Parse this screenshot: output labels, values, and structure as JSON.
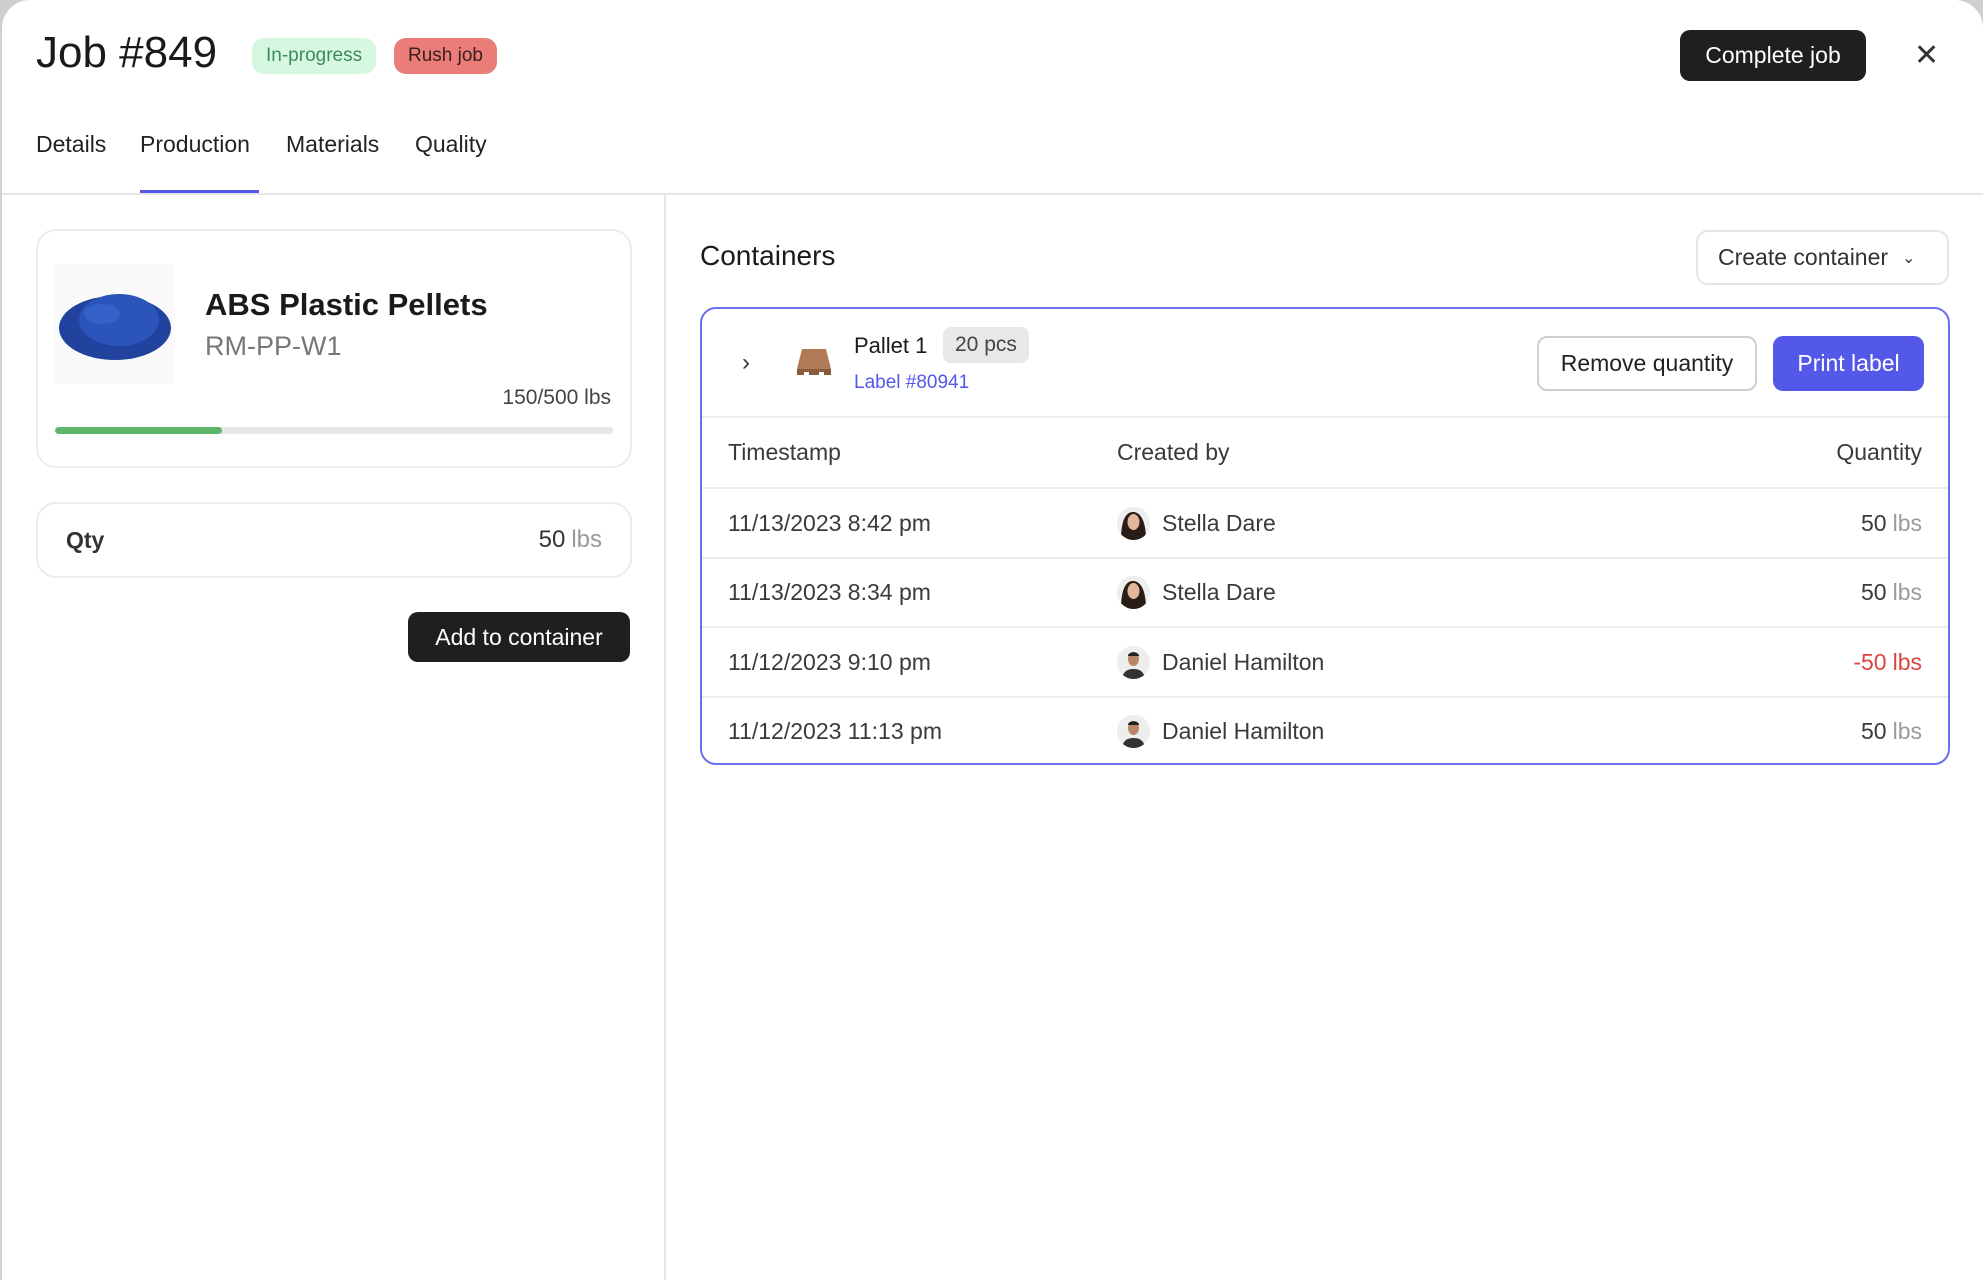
{
  "header": {
    "title": "Job #849",
    "badges": [
      {
        "label": "In-progress",
        "color": "#d6f8e1"
      },
      {
        "label": "Rush job",
        "color": "#ea7d77"
      }
    ],
    "complete_label": "Complete job",
    "close_icon": "close-icon"
  },
  "tabs": [
    {
      "label": "Details"
    },
    {
      "label": "Production",
      "active": true
    },
    {
      "label": "Materials"
    },
    {
      "label": "Quality"
    }
  ],
  "material": {
    "name": "ABS Plastic Pellets",
    "sku": "RM-PP-W1",
    "progress_text": "150/500 lbs",
    "progress_fraction": 0.3,
    "image": "blue-plastic-pellets"
  },
  "qty": {
    "label": "Qty",
    "value": "50",
    "unit": "lbs"
  },
  "add_label": "Add to container",
  "containers": {
    "heading": "Containers",
    "create_label": "Create container",
    "container": {
      "name": "Pallet 1",
      "count": "20 pcs",
      "label_link": "Label #80941",
      "remove_label": "Remove quantity",
      "print_label": "Print label",
      "accent": "#5458e8"
    },
    "columns": [
      "Timestamp",
      "Created by",
      "Quantity"
    ],
    "rows": [
      {
        "timestamp": "11/13/2023 8:42 pm",
        "user": "Stella Dare",
        "qty": "50",
        "unit": "lbs"
      },
      {
        "timestamp": "11/13/2023 8:34 pm",
        "user": "Stella Dare",
        "qty": "50",
        "unit": "lbs"
      },
      {
        "timestamp": "11/12/2023 9:10 pm",
        "user": "Daniel Hamilton",
        "qty": "-50",
        "unit": "lbs",
        "negative": true
      },
      {
        "timestamp": "11/12/2023 11:13 pm",
        "user": "Daniel Hamilton",
        "qty": "50",
        "unit": "lbs"
      }
    ]
  }
}
